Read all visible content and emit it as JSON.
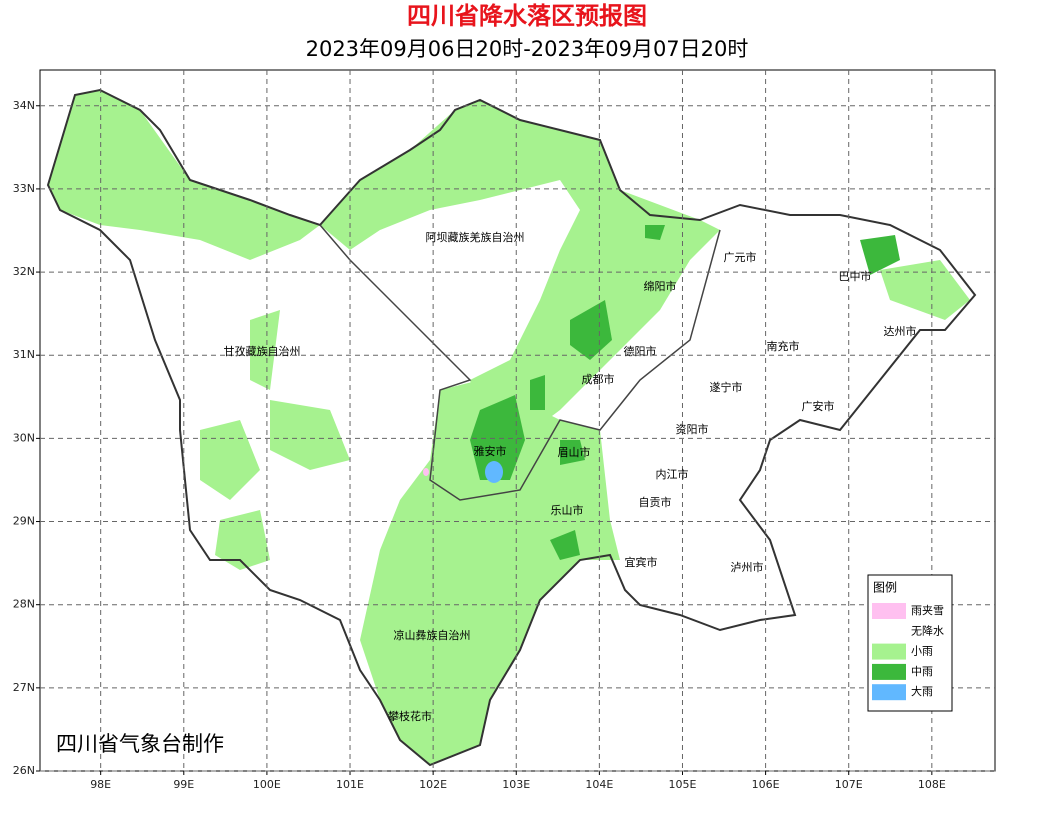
{
  "map": {
    "title": "四川省降水落区预报图",
    "subtitle": "2023年09月06日20时-2023年09月07日20时",
    "credit": "四川省气象台制作",
    "xlim": [
      97.27,
      108.76
    ],
    "ylim": [
      26,
      34.43
    ],
    "xticks": [
      {
        "value": 98,
        "label": "98E"
      },
      {
        "value": 99,
        "label": "99E"
      },
      {
        "value": 100,
        "label": "100E"
      },
      {
        "value": 101,
        "label": "101E"
      },
      {
        "value": 102,
        "label": "102E"
      },
      {
        "value": 103,
        "label": "103E"
      },
      {
        "value": 104,
        "label": "104E"
      },
      {
        "value": 105,
        "label": "105E"
      },
      {
        "value": 106,
        "label": "106E"
      },
      {
        "value": 107,
        "label": "107E"
      },
      {
        "value": 108,
        "label": "108E"
      }
    ],
    "yticks": [
      {
        "value": 26,
        "label": "26N"
      },
      {
        "value": 27,
        "label": "27N"
      },
      {
        "value": 28,
        "label": "28N"
      },
      {
        "value": 29,
        "label": "29N"
      },
      {
        "value": 30,
        "label": "30N"
      },
      {
        "value": 31,
        "label": "31N"
      },
      {
        "value": 32,
        "label": "32N"
      },
      {
        "value": 33,
        "label": "33N"
      },
      {
        "value": 34,
        "label": "34N"
      }
    ],
    "grid": true,
    "cities": [
      "阿坝藏族羌族自治州",
      "广元市",
      "巴中市",
      "绵阳市",
      "达州市",
      "甘孜藏族自治州",
      "德阳市",
      "南充市",
      "成都市",
      "遂宁市",
      "广安市",
      "资阳市",
      "雅安市",
      "眉山市",
      "内江市",
      "自贡市",
      "乐山市",
      "宜宾市",
      "泸州市",
      "凉山彝族自治州",
      "攀枝花市"
    ],
    "legend": {
      "title": "图例",
      "items": [
        {
          "name": "雨夹雪",
          "color": "#ffc0f0"
        },
        {
          "name": "无降水",
          "color": "#ffffff"
        },
        {
          "name": "小雨",
          "color": "#a6f28f"
        },
        {
          "name": "中雨",
          "color": "#3cb83c"
        },
        {
          "name": "大雨",
          "color": "#61b8ff"
        }
      ]
    }
  }
}
